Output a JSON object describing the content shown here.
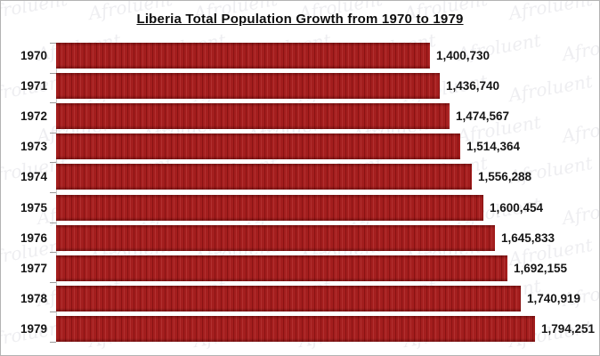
{
  "watermark": {
    "text": "Afroluent"
  },
  "colors": {
    "bar": "#a41e1e",
    "bar_stripe": "#8a1313",
    "frame_border": "#b3b3b3",
    "axis": "#c9c9c9",
    "tick": "#9a9a9a",
    "text": "#151515"
  },
  "chart_data": {
    "type": "bar",
    "orientation": "horizontal",
    "title": "Liberia Total Population Growth from 1970 to 1979",
    "categories": [
      "1970",
      "1971",
      "1972",
      "1973",
      "1974",
      "1975",
      "1976",
      "1977",
      "1978",
      "1979"
    ],
    "values": [
      1400730,
      1436740,
      1474567,
      1514364,
      1556288,
      1600454,
      1645833,
      1692155,
      1740919,
      1794251
    ],
    "value_labels": [
      "1,400,730",
      "1,436,740",
      "1,474,567",
      "1,514,364",
      "1,556,288",
      "1,600,454",
      "1,645,833",
      "1,692,155",
      "1,740,919",
      "1,794,251"
    ],
    "xlim": [
      0,
      1850000
    ],
    "grid": false,
    "legend": null,
    "value_labels_position": "outside-end",
    "category_axis": "left"
  }
}
